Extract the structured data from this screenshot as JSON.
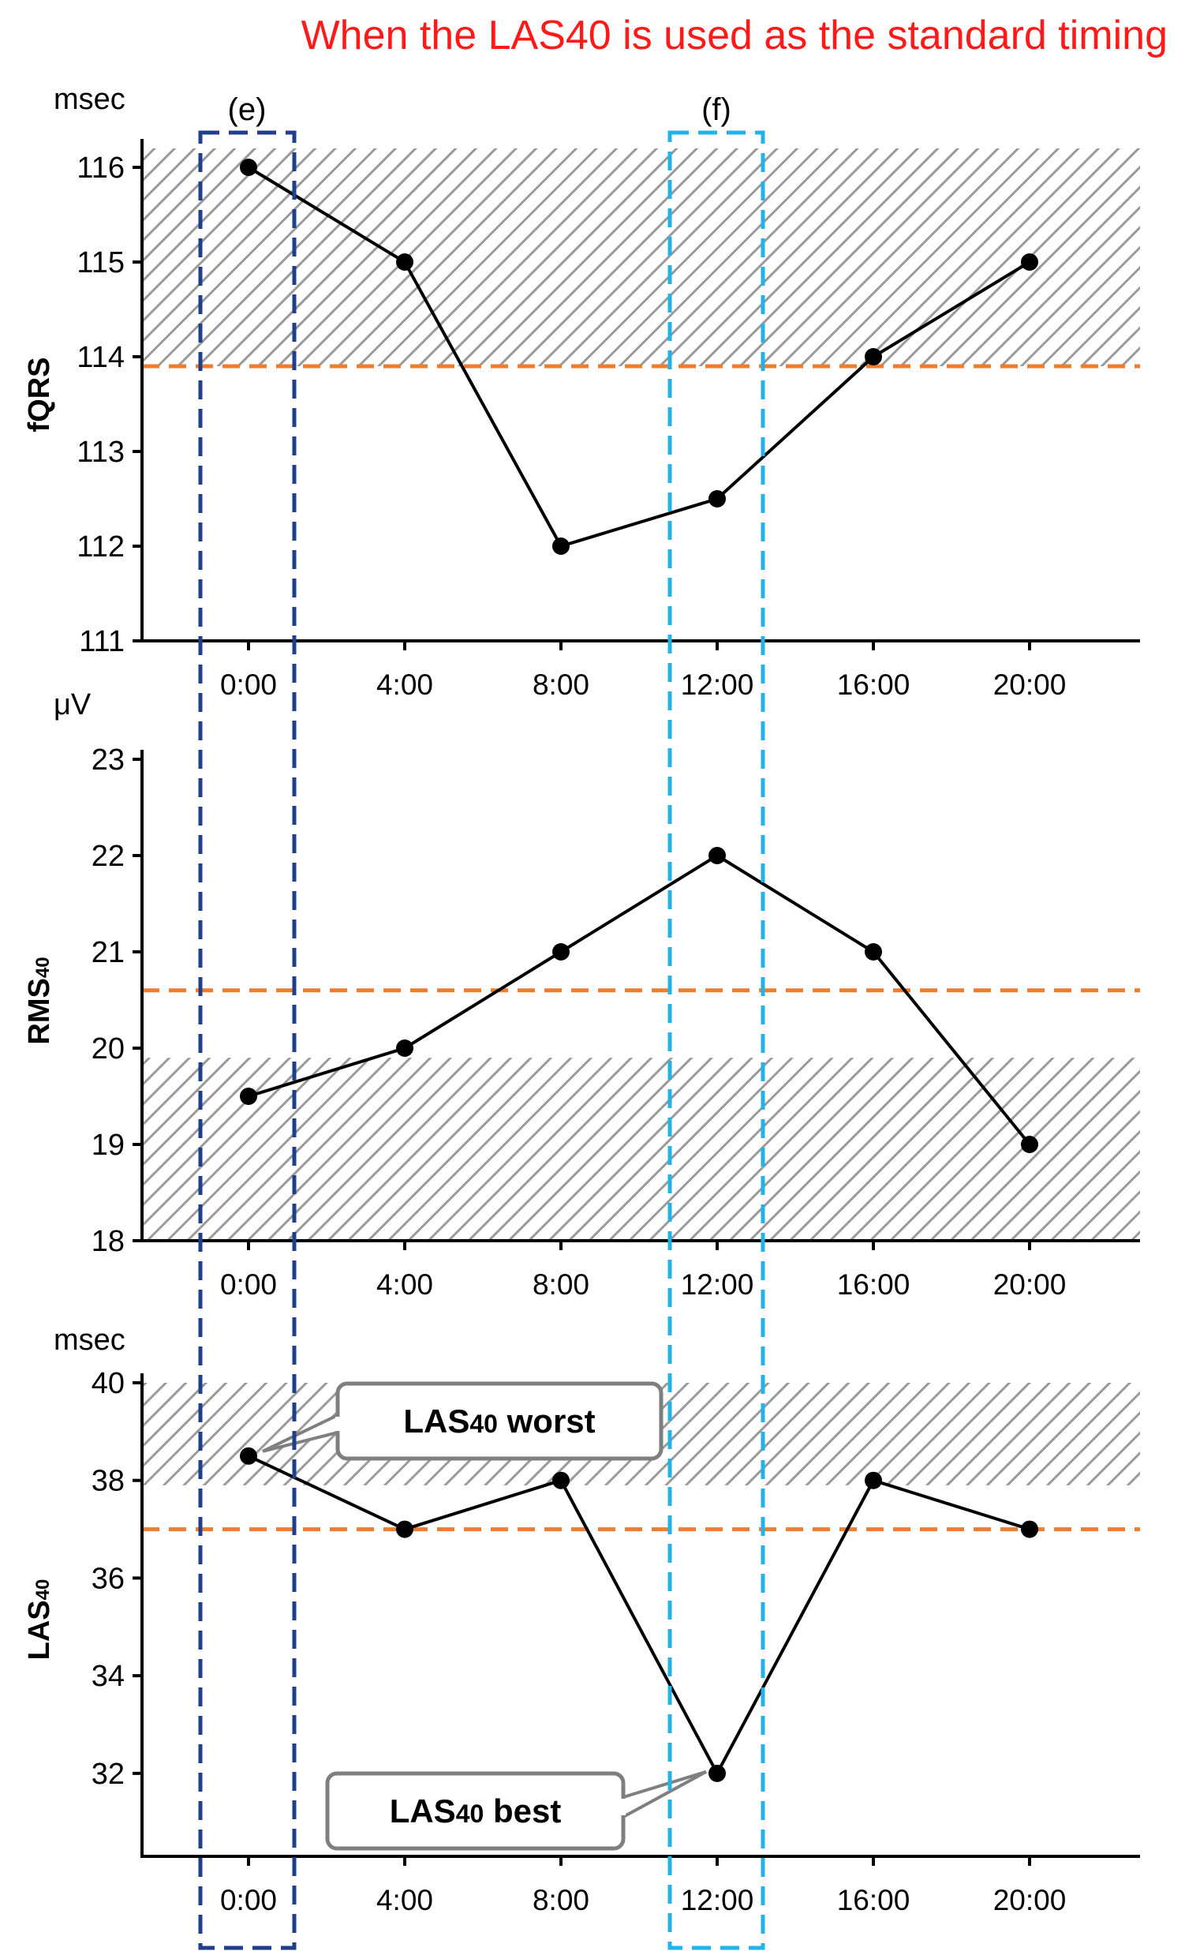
{
  "title": "When the LAS40 is used as the standard timing",
  "colors": {
    "title": "#ff1a1a",
    "line": "#000000",
    "threshold": "#ed7d31",
    "hatch": "#9a9a9a",
    "box_e": "#1f3f8a",
    "box_f": "#22b2ea",
    "callout_border": "#7f7f7f"
  },
  "boxes": [
    {
      "label": "(e)",
      "time": "0:00",
      "color": "#1f3f8a"
    },
    {
      "label": "(f)",
      "time": "12:00",
      "color": "#22b2ea"
    }
  ],
  "chart_data": [
    {
      "type": "line",
      "ylabel": "fQRS",
      "unit": "msec",
      "categories": [
        "0:00",
        "4:00",
        "8:00",
        "12:00",
        "16:00",
        "20:00"
      ],
      "values": [
        116,
        115,
        112,
        112.5,
        114,
        115
      ],
      "ylim": [
        111,
        116.2
      ],
      "yticks": [
        111,
        112,
        113,
        114,
        115,
        116
      ],
      "threshold": 113.9,
      "abnormal_region": [
        113.9,
        116.2
      ]
    },
    {
      "type": "line",
      "ylabel": "RMS",
      "ylabel_sub": "40",
      "unit": "μV",
      "categories": [
        "0:00",
        "4:00",
        "8:00",
        "12:00",
        "16:00",
        "20:00"
      ],
      "values": [
        19.5,
        20,
        21,
        22,
        21,
        19
      ],
      "ylim": [
        18,
        23
      ],
      "yticks": [
        18,
        19,
        20,
        21,
        22,
        23
      ],
      "threshold": 20.6,
      "abnormal_region": [
        18,
        19.9
      ]
    },
    {
      "type": "line",
      "ylabel": "LAS",
      "ylabel_sub": "40",
      "unit": "msec",
      "categories": [
        "0:00",
        "4:00",
        "8:00",
        "12:00",
        "16:00",
        "20:00"
      ],
      "values": [
        38.5,
        37,
        38,
        32,
        38,
        37
      ],
      "ylim": [
        30.3,
        40
      ],
      "yticks": [
        32,
        34,
        36,
        38,
        40
      ],
      "threshold": 37,
      "abnormal_region": [
        37.9,
        40
      ],
      "annotations": [
        {
          "text": "LAS",
          "sub": "40",
          "suffix": " worst",
          "point_index": 0
        },
        {
          "text": "LAS",
          "sub": "40",
          "suffix": " best",
          "point_index": 3
        }
      ]
    }
  ]
}
